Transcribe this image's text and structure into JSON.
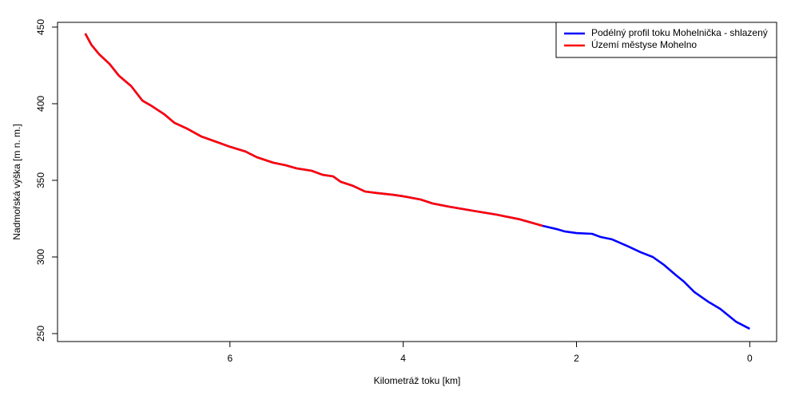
{
  "chart_data": {
    "type": "line",
    "xlabel": "Kilometráž toku [km]",
    "ylabel": "Nadmořská výška [m n. m.]",
    "xlim": [
      7.99,
      -0.31
    ],
    "xticks": [
      6,
      4,
      2,
      0
    ],
    "ylim": [
      244.8,
      453.1
    ],
    "yticks": [
      250,
      300,
      350,
      400,
      450
    ],
    "legend": "top-right",
    "series": [
      {
        "name": "Podélný profil toku Mohelnička - shlazený",
        "color": "#0000ff",
        "x": [
          7.67,
          7.6,
          7.51,
          7.39,
          7.28,
          7.14,
          7.01,
          6.9,
          6.76,
          6.64,
          6.5,
          6.33,
          6.15,
          6.0,
          5.82,
          5.69,
          5.5,
          5.36,
          5.23,
          5.06,
          4.93,
          4.81,
          4.72,
          4.58,
          4.44,
          4.3,
          4.12,
          4.0,
          3.8,
          3.66,
          3.47,
          3.2,
          2.92,
          2.65,
          2.39,
          2.23,
          2.14,
          2.0,
          1.82,
          1.72,
          1.59,
          1.4,
          1.26,
          1.12,
          0.99,
          0.85,
          0.76,
          0.64,
          0.48,
          0.34,
          0.16,
          0
        ],
        "values": [
          445.8,
          438.5,
          432.3,
          426,
          418.2,
          411.5,
          402,
          398.4,
          393.2,
          387.5,
          383.9,
          378.6,
          375,
          371.9,
          368.8,
          365.1,
          361.5,
          359.9,
          357.8,
          356.3,
          353.6,
          352.6,
          349,
          346.4,
          342.7,
          341.7,
          340.6,
          339.6,
          337.5,
          334.9,
          332.8,
          330.2,
          327.6,
          324.5,
          320.3,
          318.2,
          316.7,
          315.6,
          315.1,
          313,
          311.5,
          306.8,
          303.1,
          300,
          294.8,
          288,
          283.9,
          277.1,
          270.8,
          266.1,
          257.8,
          253.1
        ]
      },
      {
        "name": "Území městyse Mohelno",
        "color": "#ff0000",
        "x": [
          7.67,
          7.6,
          7.51,
          7.39,
          7.28,
          7.14,
          7.01,
          6.9,
          6.76,
          6.64,
          6.5,
          6.33,
          6.15,
          6.0,
          5.82,
          5.69,
          5.5,
          5.36,
          5.23,
          5.06,
          4.93,
          4.81,
          4.72,
          4.58,
          4.44,
          4.3,
          4.12,
          4.0,
          3.8,
          3.66,
          3.47,
          3.2,
          2.92,
          2.65,
          2.39
        ],
        "values": [
          445.8,
          438.5,
          432.3,
          426,
          418.2,
          411.5,
          402,
          398.4,
          393.2,
          387.5,
          383.9,
          378.6,
          375,
          371.9,
          368.8,
          365.1,
          361.5,
          359.9,
          357.8,
          356.3,
          353.6,
          352.6,
          349,
          346.4,
          342.7,
          341.7,
          340.6,
          339.6,
          337.5,
          334.9,
          332.8,
          330.2,
          327.6,
          324.5,
          320.3
        ]
      }
    ]
  }
}
